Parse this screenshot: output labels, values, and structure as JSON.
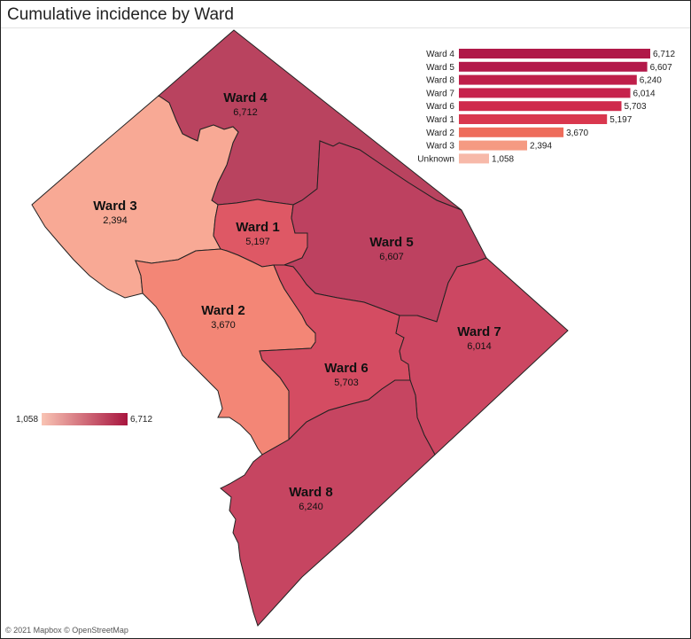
{
  "title": "Cumulative incidence by Ward",
  "attribution": "© 2021 Mapbox © OpenStreetMap",
  "legend": {
    "min_label": "1,058",
    "max_label": "6,712",
    "color_low": "#f9c4b4",
    "color_high": "#a8153f"
  },
  "wards": [
    {
      "id": "ward4",
      "name": "Ward 4",
      "value_label": "6,712",
      "value": 6712,
      "color": "#b9435f"
    },
    {
      "id": "ward3",
      "name": "Ward 3",
      "value_label": "2,394",
      "value": 2394,
      "color": "#f8a995"
    },
    {
      "id": "ward1",
      "name": "Ward 1",
      "value_label": "5,197",
      "value": 5197,
      "color": "#de5865"
    },
    {
      "id": "ward5",
      "name": "Ward 5",
      "value_label": "6,607",
      "value": 6607,
      "color": "#bd4160"
    },
    {
      "id": "ward2",
      "name": "Ward 2",
      "value_label": "3,670",
      "value": 3670,
      "color": "#f38676"
    },
    {
      "id": "ward6",
      "name": "Ward 6",
      "value_label": "5,703",
      "value": 5703,
      "color": "#d44c62"
    },
    {
      "id": "ward7",
      "name": "Ward 7",
      "value_label": "6,014",
      "value": 6014,
      "color": "#cc4762"
    },
    {
      "id": "ward8",
      "name": "Ward 8",
      "value_label": "6,240",
      "value": 6240,
      "color": "#c64561"
    }
  ],
  "chart_data": {
    "type": "bar",
    "orientation": "horizontal",
    "categories": [
      "Ward 4",
      "Ward 5",
      "Ward 8",
      "Ward 7",
      "Ward 6",
      "Ward 1",
      "Ward 2",
      "Ward 3",
      "Unknown"
    ],
    "values": [
      6712,
      6607,
      6240,
      6014,
      5703,
      5197,
      3670,
      2394,
      1058
    ],
    "value_labels": [
      "6,712",
      "6,607",
      "6,240",
      "6,014",
      "5,703",
      "5,197",
      "3,670",
      "2,394",
      "1,058"
    ],
    "colors": [
      "#b01848",
      "#b3194a",
      "#bf1f4a",
      "#c6224c",
      "#cf2a4c",
      "#d9374e",
      "#ee6c5b",
      "#f59a82",
      "#f7b9a9"
    ],
    "xlim": [
      0,
      6712
    ]
  }
}
